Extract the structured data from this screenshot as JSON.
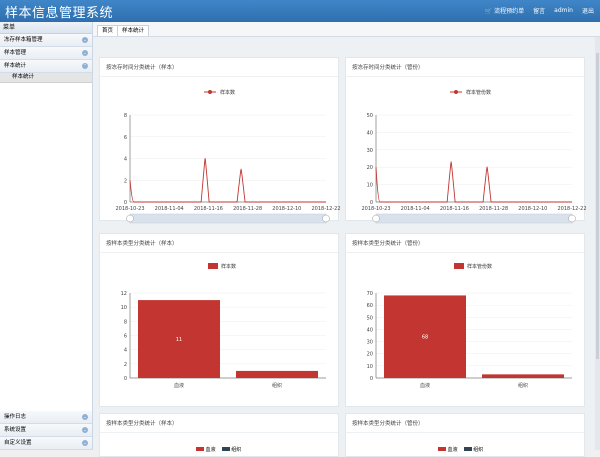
{
  "header": {
    "title": "样本信息管理系统",
    "cart": "流程预约单",
    "msg": "留言",
    "user": "admin",
    "logout": "退出"
  },
  "sidebar": {
    "top": "菜单",
    "items": [
      {
        "label": "冻存样本箱管理"
      },
      {
        "label": "样本管理"
      },
      {
        "label": "样本统计"
      }
    ],
    "sub": "样本统计",
    "bottom": [
      {
        "label": "操作日志"
      },
      {
        "label": "系统设置"
      },
      {
        "label": "自定义设置"
      }
    ]
  },
  "tabs": [
    {
      "label": "首页"
    },
    {
      "label": "样本统计"
    }
  ],
  "panels": {
    "p1": {
      "title": "按冻存时间分类统计（样本）",
      "legend": "样本数"
    },
    "p2": {
      "title": "按冻存时间分类统计（管份）",
      "legend": "样本管份数"
    },
    "p3": {
      "title": "按样本类型分类统计（样本）",
      "legend": "样本数"
    },
    "p4": {
      "title": "按样本类型分类统计（管份）",
      "legend": "样本管份数"
    },
    "p5": {
      "title": "按样本类型分类统计（样本）",
      "legend1": "血液",
      "legend2": "组织"
    },
    "p6": {
      "title": "按样本类型分类统计（管份）",
      "legend1": "血液",
      "legend2": "组织"
    }
  },
  "chart_data": [
    {
      "type": "line",
      "x": [
        "2018-10-23",
        "2018-11-04",
        "2018-11-16",
        "2018-11-28",
        "2018-12-10",
        "2018-12-22"
      ],
      "ylim": [
        0,
        8
      ],
      "yticks": [
        0,
        2,
        4,
        6,
        8
      ],
      "series": [
        {
          "name": "样本数",
          "peaks": [
            [
              "2018-10-23",
              2
            ],
            [
              "2018-11-15",
              4
            ],
            [
              "2018-11-26",
              3
            ]
          ]
        }
      ]
    },
    {
      "type": "line",
      "x": [
        "2018-10-23",
        "2018-11-04",
        "2018-11-16",
        "2018-11-28",
        "2018-12-10",
        "2018-12-22"
      ],
      "ylim": [
        0,
        50
      ],
      "yticks": [
        0,
        10,
        20,
        30,
        40,
        50
      ],
      "series": [
        {
          "name": "样本管份数",
          "peaks": [
            [
              "2018-10-23",
              20
            ],
            [
              "2018-11-15",
              23
            ],
            [
              "2018-11-26",
              20
            ]
          ]
        }
      ]
    },
    {
      "type": "bar",
      "categories": [
        "血液",
        "组织"
      ],
      "values": [
        11,
        1
      ],
      "ylim": [
        0,
        12
      ],
      "yticks": [
        0,
        2,
        4,
        6,
        8,
        10,
        12
      ],
      "series": [
        {
          "name": "样本数"
        }
      ]
    },
    {
      "type": "bar",
      "categories": [
        "血液",
        "组织"
      ],
      "values": [
        68,
        3
      ],
      "ylim": [
        0,
        70
      ],
      "yticks": [
        0,
        10,
        20,
        30,
        40,
        50,
        60,
        70
      ],
      "series": [
        {
          "name": "样本管份数"
        }
      ]
    }
  ],
  "colors": {
    "accent": "#c23531",
    "header": "#3479bb"
  }
}
